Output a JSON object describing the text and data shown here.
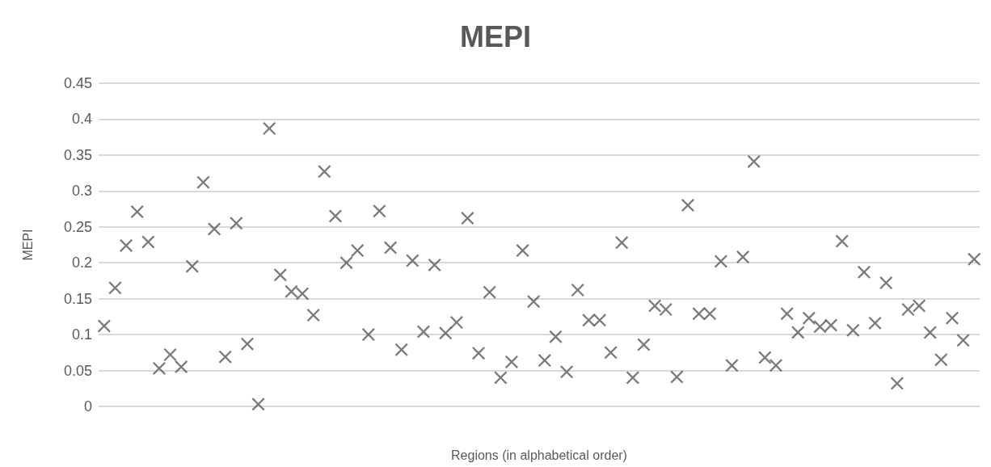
{
  "chart_data": {
    "type": "scatter",
    "title": "MEPI",
    "xlabel": "Regions (in alphabetical order)",
    "ylabel": "MEPI",
    "categories": [
      null,
      null,
      null,
      null,
      null,
      null,
      null,
      null,
      null,
      null,
      null,
      null,
      null,
      null,
      null,
      null,
      null,
      null,
      null,
      null,
      null,
      null,
      null,
      null,
      null,
      null,
      null,
      null,
      null,
      null,
      null,
      null,
      null,
      null,
      null,
      null,
      null,
      null,
      null,
      null,
      null,
      null,
      null,
      null,
      null,
      null,
      null,
      null,
      null,
      null,
      null,
      null,
      null,
      null,
      null,
      null,
      null,
      null,
      null,
      null,
      null,
      null,
      null,
      null,
      null,
      null,
      null,
      null,
      null,
      null,
      null,
      null,
      null,
      null,
      null,
      null,
      null,
      null,
      null,
      null
    ],
    "series": [
      {
        "color": "#595959",
        "values": [
          0.112,
          0.165,
          0.224,
          0.271,
          0.229,
          0.053,
          0.072,
          0.055,
          0.195,
          0.312,
          0.247,
          0.069,
          0.255,
          0.087,
          0.003,
          0.387,
          0.183,
          0.16,
          0.157,
          0.127,
          0.327,
          0.265,
          0.2,
          0.217,
          0.1,
          0.272,
          0.221,
          0.079,
          0.203,
          0.104,
          0.197,
          0.102,
          0.117,
          0.262,
          0.074,
          0.159,
          0.04,
          0.062,
          0.217,
          0.146,
          0.064,
          0.097,
          0.048,
          0.162,
          0.12,
          0.12,
          0.075,
          0.228,
          0.04,
          0.086,
          0.14,
          0.135,
          0.041,
          0.28,
          0.129,
          0.129,
          0.202,
          0.057,
          0.208,
          0.341,
          0.068,
          0.057,
          0.129,
          0.103,
          0.123,
          0.111,
          0.113,
          0.23,
          0.106,
          0.187,
          0.116,
          0.172,
          0.032,
          0.135,
          0.14,
          0.103,
          0.065,
          0.123,
          0.092,
          0.205
        ]
      }
    ],
    "ylim": [
      0,
      0.45
    ],
    "yticks": [
      0,
      0.05,
      0.1,
      0.15,
      0.2,
      0.25,
      0.3,
      0.35,
      0.4,
      0.45
    ],
    "grid": "y",
    "tick_labels": "y",
    "marker": "cross"
  }
}
